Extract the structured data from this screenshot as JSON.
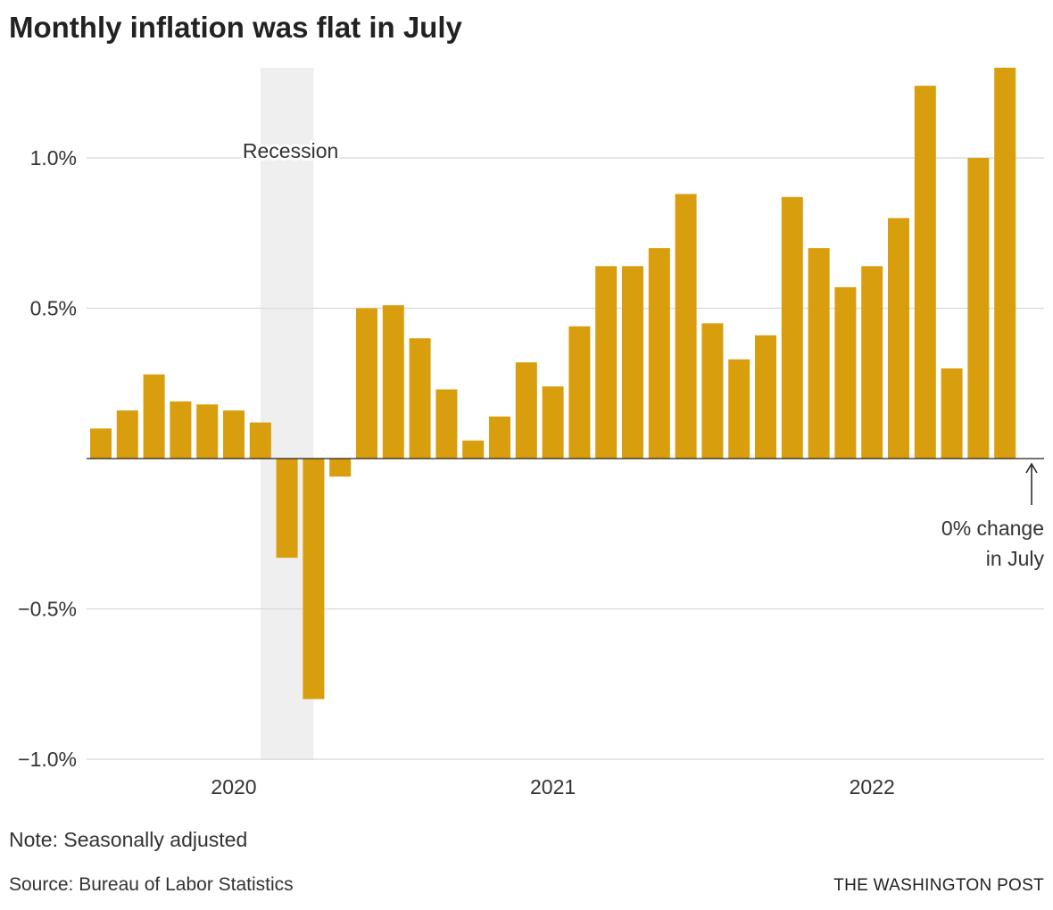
{
  "chart_data": {
    "type": "bar",
    "title": "Monthly inflation was flat in July",
    "xlabel": "",
    "ylabel": "",
    "ylim": [
      -1.0,
      1.3
    ],
    "yticks": [
      -1.0,
      -0.5,
      0.5,
      1.0
    ],
    "ytick_labels": [
      "−1.0%",
      "−0.5%",
      "0.5%",
      "1.0%"
    ],
    "xtick_labels": [
      "2020",
      "2021",
      "2022"
    ],
    "xtick_positions": [
      "2020-01",
      "2021-01",
      "2022-01"
    ],
    "grid": true,
    "categories": [
      "2019-08",
      "2019-09",
      "2019-10",
      "2019-11",
      "2019-12",
      "2020-01",
      "2020-02",
      "2020-03",
      "2020-04",
      "2020-05",
      "2020-06",
      "2020-07",
      "2020-08",
      "2020-09",
      "2020-10",
      "2020-11",
      "2020-12",
      "2021-01",
      "2021-02",
      "2021-03",
      "2021-04",
      "2021-05",
      "2021-06",
      "2021-07",
      "2021-08",
      "2021-09",
      "2021-10",
      "2021-11",
      "2021-12",
      "2022-01",
      "2022-02",
      "2022-03",
      "2022-04",
      "2022-05",
      "2022-06",
      "2022-07"
    ],
    "values": [
      0.1,
      0.16,
      0.28,
      0.19,
      0.18,
      0.16,
      0.12,
      -0.33,
      -0.8,
      -0.06,
      0.5,
      0.51,
      0.4,
      0.23,
      0.06,
      0.14,
      0.32,
      0.24,
      0.44,
      0.64,
      0.64,
      0.7,
      0.88,
      0.45,
      0.33,
      0.41,
      0.87,
      0.7,
      0.57,
      0.64,
      0.8,
      1.24,
      0.3,
      1.0,
      1.3,
      0.0
    ],
    "bar_color": "#d89e0e",
    "shaded_region": {
      "label": "Recession",
      "from": "2020-02",
      "to": "2020-04",
      "color": "#efefef"
    },
    "annotation": {
      "lines": [
        "0% change",
        "in July"
      ],
      "target": "2022-07"
    }
  },
  "note": "Note: Seasonally adjusted",
  "source": "Source: Bureau of Labor Statistics",
  "credit": "THE WASHINGTON POST"
}
